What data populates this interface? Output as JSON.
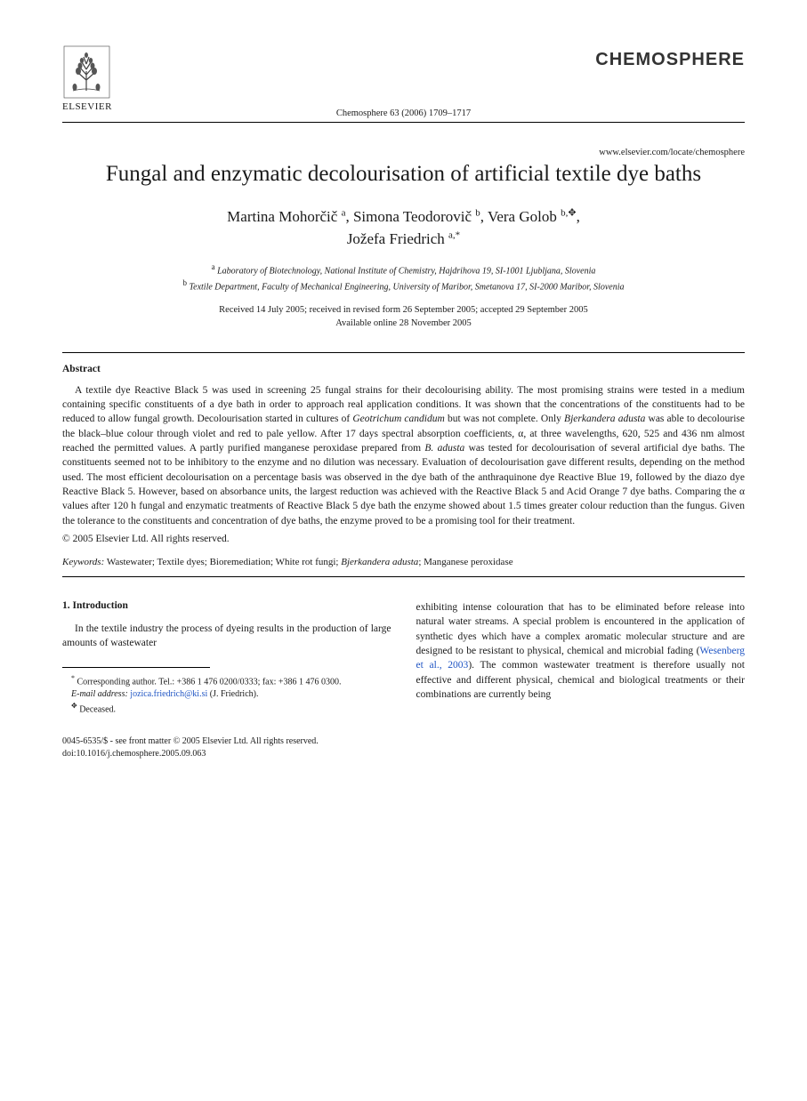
{
  "publisher": {
    "name": "ELSEVIER",
    "logo_color": "#3a3a3a"
  },
  "journal": {
    "brand": "CHEMOSPHERE",
    "citation": "Chemosphere 63 (2006) 1709–1717",
    "url": "www.elsevier.com/locate/chemosphere"
  },
  "title": "Fungal and enzymatic decolourisation of artificial textile dye baths",
  "authors_html": "Martina Mohorčič <sup>a</sup>, Simona Teodorovič <sup>b</sup>, Vera Golob <sup>b,✥</sup>,<br>Jožefa Friedrich <sup>a,*</sup>",
  "affiliations": {
    "a": "Laboratory of Biotechnology, National Institute of Chemistry, Hajdrihova 19, SI-1001 Ljubljana, Slovenia",
    "b": "Textile Department, Faculty of Mechanical Engineering, University of Maribor, Smetanova 17, SI-2000 Maribor, Slovenia"
  },
  "dates": {
    "received": "Received 14 July 2005; received in revised form 26 September 2005; accepted 29 September 2005",
    "online": "Available online 28 November 2005"
  },
  "abstract": {
    "heading": "Abstract",
    "text": "A textile dye Reactive Black 5 was used in screening 25 fungal strains for their decolourising ability. The most promising strains were tested in a medium containing specific constituents of a dye bath in order to approach real application conditions. It was shown that the concentrations of the constituents had to be reduced to allow fungal growth. Decolourisation started in cultures of Geotrichum candidum but was not complete. Only Bjerkandera adusta was able to decolourise the black–blue colour through violet and red to pale yellow. After 17 days spectral absorption coefficients, α, at three wavelengths, 620, 525 and 436 nm almost reached the permitted values. A partly purified manganese peroxidase prepared from B. adusta was tested for decolourisation of several artificial dye baths. The constituents seemed not to be inhibitory to the enzyme and no dilution was necessary. Evaluation of decolourisation gave different results, depending on the method used. The most efficient decolourisation on a percentage basis was observed in the dye bath of the anthraquinone dye Reactive Blue 19, followed by the diazo dye Reactive Black 5. However, based on absorbance units, the largest reduction was achieved with the Reactive Black 5 and Acid Orange 7 dye baths. Comparing the α values after 120 h fungal and enzymatic treatments of Reactive Black 5 dye bath the enzyme showed about 1.5 times greater colour reduction than the fungus. Given the tolerance to the constituents and concentration of dye baths, the enzyme proved to be a promising tool for their treatment.",
    "copyright": "© 2005 Elsevier Ltd. All rights reserved."
  },
  "keywords": {
    "label": "Keywords:",
    "text": "Wastewater; Textile dyes; Bioremediation; White rot fungi; Bjerkandera adusta; Manganese peroxidase"
  },
  "intro": {
    "heading": "1. Introduction",
    "col1": "In the textile industry the process of dyeing results in the production of large amounts of wastewater",
    "col2_part1": "exhibiting intense colouration that has to be eliminated before release into natural water streams. A special problem is encountered in the application of synthetic dyes which have a complex aromatic molecular structure and are designed to be resistant to physical, chemical and microbial fading (",
    "col2_ref": "Wesenberg et al., 2003",
    "col2_part2": "). The common wastewater treatment is therefore usually not effective and different physical, chemical and biological treatments or their combinations are currently being"
  },
  "footnotes": {
    "corresponding": "Corresponding author. Tel.: +386 1 476 0200/0333; fax: +386 1 476 0300.",
    "email_label": "E-mail address:",
    "email": "jozica.friedrich@ki.si",
    "email_author": "(J. Friedrich).",
    "deceased_mark": "✥",
    "deceased": "Deceased."
  },
  "bottom": {
    "issn": "0045-6535/$ - see front matter © 2005 Elsevier Ltd. All rights reserved.",
    "doi": "doi:10.1016/j.chemosphere.2005.09.063"
  },
  "colors": {
    "link": "#2156c4",
    "text": "#1a1a1a"
  }
}
